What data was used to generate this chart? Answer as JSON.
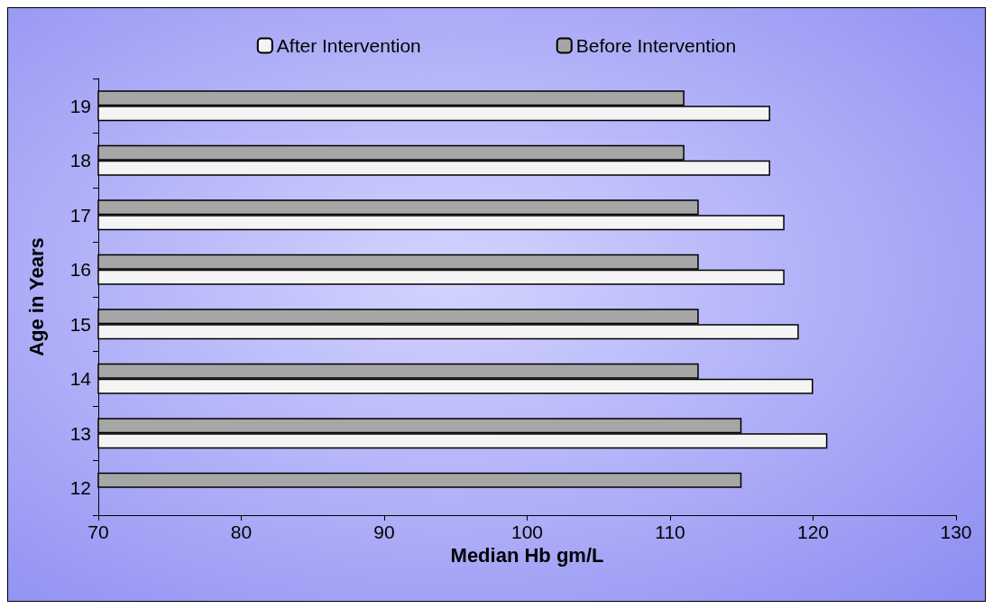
{
  "chart_data": {
    "type": "bar",
    "orientation": "horizontal",
    "xlabel": "Median Hb gm/L",
    "ylabel": "Age in Years",
    "categories": [
      "19",
      "18",
      "17",
      "16",
      "15",
      "14",
      "13",
      "12"
    ],
    "series": [
      {
        "name": "After Intervention",
        "color": "#f4f4f4",
        "values": [
          117,
          117,
          118,
          118,
          119,
          120,
          121,
          null
        ]
      },
      {
        "name": "Before Intervention",
        "color": "#a6a6a6",
        "values": [
          111,
          111,
          112,
          112,
          112,
          112,
          115,
          115
        ]
      }
    ],
    "xlim": [
      70,
      130
    ],
    "xticks": [
      70,
      80,
      90,
      100,
      110,
      120,
      130
    ],
    "grid": false,
    "legend": "top"
  }
}
